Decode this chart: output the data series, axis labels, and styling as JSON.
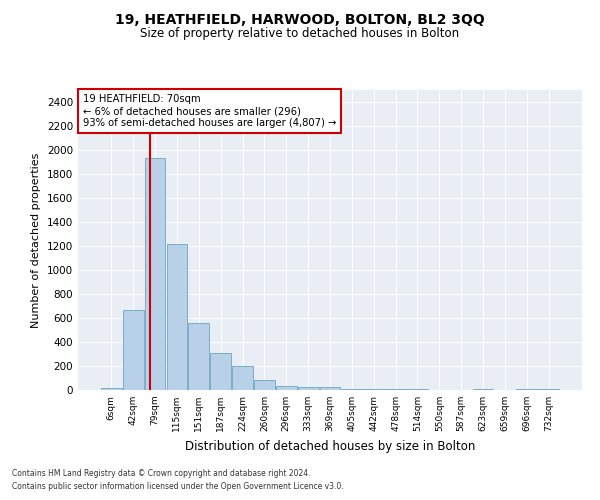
{
  "title": "19, HEATHFIELD, HARWOOD, BOLTON, BL2 3QQ",
  "subtitle": "Size of property relative to detached houses in Bolton",
  "xlabel": "Distribution of detached houses by size in Bolton",
  "ylabel": "Number of detached properties",
  "bar_labels": [
    "6sqm",
    "42sqm",
    "79sqm",
    "115sqm",
    "151sqm",
    "187sqm",
    "224sqm",
    "260sqm",
    "296sqm",
    "333sqm",
    "369sqm",
    "405sqm",
    "442sqm",
    "478sqm",
    "514sqm",
    "550sqm",
    "587sqm",
    "623sqm",
    "659sqm",
    "696sqm",
    "732sqm"
  ],
  "bar_values": [
    20,
    670,
    1930,
    1220,
    560,
    310,
    200,
    80,
    35,
    25,
    25,
    5,
    5,
    5,
    5,
    0,
    0,
    5,
    0,
    5,
    5
  ],
  "bar_color": "#b8d0e8",
  "bar_edgecolor": "#7aaec8",
  "ylim": [
    0,
    2500
  ],
  "yticks": [
    0,
    200,
    400,
    600,
    800,
    1000,
    1200,
    1400,
    1600,
    1800,
    2000,
    2200,
    2400
  ],
  "property_line_x": 1.75,
  "annotation_title": "19 HEATHFIELD: 70sqm",
  "annotation_line1": "← 6% of detached houses are smaller (296)",
  "annotation_line2": "93% of semi-detached houses are larger (4,807) →",
  "red_line_color": "#cc0000",
  "annotation_box_color": "#ffffff",
  "annotation_box_edgecolor": "#cc0000",
  "background_color": "#e8eef4",
  "footer1": "Contains HM Land Registry data © Crown copyright and database right 2024.",
  "footer2": "Contains public sector information licensed under the Open Government Licence v3.0."
}
